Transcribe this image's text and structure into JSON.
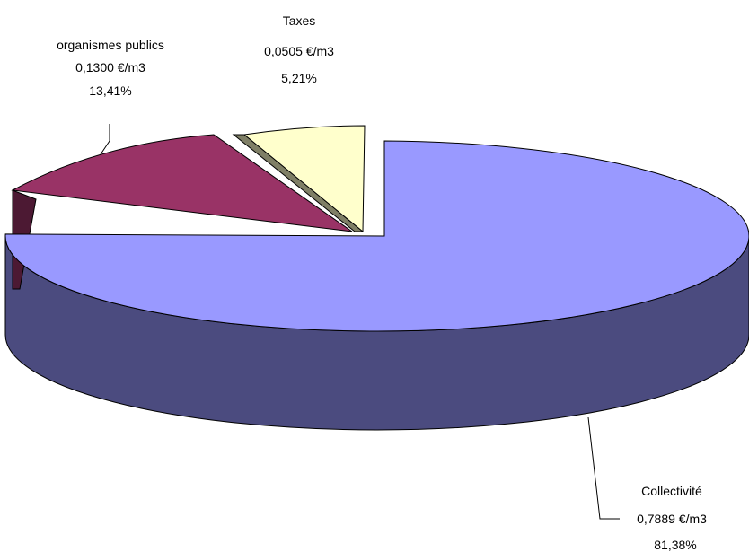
{
  "chart_data": {
    "type": "pie",
    "style": "3d-exploded",
    "title": "",
    "slices": [
      {
        "name": "Collectivité",
        "value_text": "0,7889 €/m3",
        "value": 0.7889,
        "percent_text": "81,38%",
        "percent": 81.38,
        "color": "#9999FF",
        "side_color": "#4B4B7F"
      },
      {
        "name": "Taxes",
        "value_text": "0,0505 €/m3",
        "value": 0.0505,
        "percent_text": "5,21%",
        "percent": 5.21,
        "color": "#FFFFCC",
        "side_color": "#7F7F66"
      },
      {
        "name": "organismes publics",
        "value_text": "0,1300 €/m3",
        "value": 0.13,
        "percent_text": "13,41%",
        "percent": 13.41,
        "color": "#993366",
        "side_color": "#4C1933"
      }
    ]
  }
}
